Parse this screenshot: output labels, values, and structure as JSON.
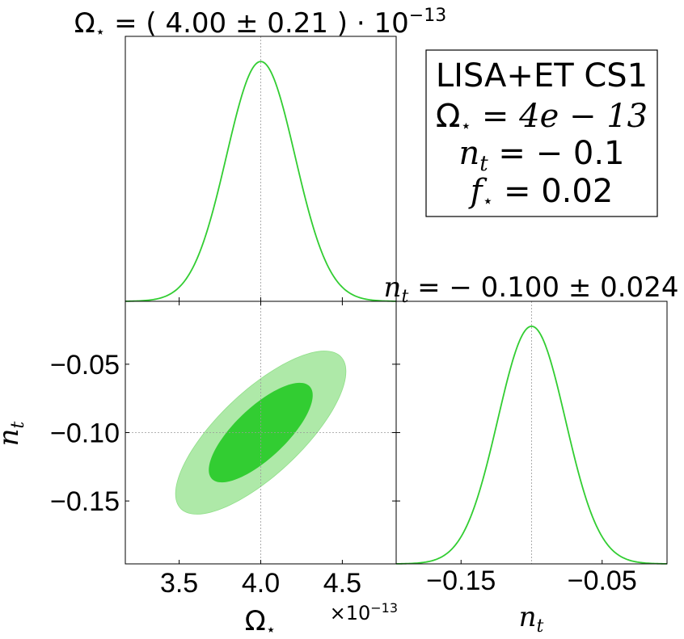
{
  "colors": {
    "line": "#32cd32",
    "inner_fill": "#32cd32",
    "outer_fill": "#aee9a8",
    "truth_line": "#999999",
    "axes": "#000000"
  },
  "titles": {
    "omega": {
      "symbol": "Ω",
      "sub": "⋆",
      "text": " = ( 4.00 ± 0.21 ) · 10",
      "sup": "−13"
    },
    "nt": {
      "symbol": "n",
      "sub": "t",
      "text": " = − 0.100 ± 0.024"
    }
  },
  "legend": {
    "line1": "LISA+ET CS1",
    "line2": {
      "symbol": "Ω",
      "sub": "⋆",
      "text": " = 4e − 13"
    },
    "line3": {
      "symbol": "n",
      "sub": "t",
      "text": " = − 0.1"
    },
    "line4": {
      "symbol": "f",
      "sub": "⋆",
      "text": " = 0.02"
    }
  },
  "axis_labels": {
    "x_omega": {
      "symbol": "Ω",
      "sub": "⋆"
    },
    "x_nt": {
      "symbol": "n",
      "sub": "t"
    },
    "y_nt": {
      "symbol": "n",
      "sub": "t"
    },
    "offset": {
      "text": "×10",
      "sup": "−13"
    }
  },
  "chart_data": {
    "type": "corner",
    "parameters": [
      {
        "name": "Ω⋆",
        "mean": 4.0,
        "sigma": 0.21,
        "truth": 4.0,
        "unit_scale": "1e-13",
        "range": [
          3.17,
          4.83
        ],
        "ticks": [
          3.5,
          4.0,
          4.5
        ],
        "tick_labels": [
          "3.5",
          "4.0",
          "4.5"
        ]
      },
      {
        "name": "n_t",
        "mean": -0.1,
        "sigma": 0.024,
        "truth": -0.1,
        "range": [
          -0.196,
          -0.004
        ],
        "y_ticks": [
          -0.05,
          -0.1,
          -0.15
        ],
        "y_tick_labels": [
          "−0.05",
          "−0.10",
          "−0.15"
        ],
        "x_ticks": [
          -0.15,
          -0.05
        ],
        "x_tick_labels": [
          "−0.15",
          "−0.05"
        ]
      }
    ],
    "correlation": 0.75,
    "contour_levels": [
      "68%",
      "95%"
    ],
    "grid": false
  }
}
